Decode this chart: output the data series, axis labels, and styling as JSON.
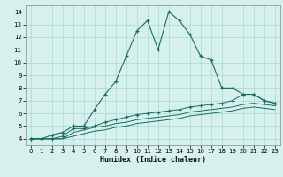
{
  "title": "",
  "xlabel": "Humidex (Indice chaleur)",
  "ylabel": "",
  "bg_color": "#d6f0ee",
  "grid_color": "#a8d8d0",
  "line_color": "#1a6b5e",
  "xlim": [
    -0.5,
    23.5
  ],
  "ylim": [
    3.5,
    14.5
  ],
  "xticks": [
    0,
    1,
    2,
    3,
    4,
    5,
    6,
    7,
    8,
    9,
    10,
    11,
    12,
    13,
    14,
    15,
    16,
    17,
    18,
    19,
    20,
    21,
    22,
    23
  ],
  "yticks": [
    4,
    5,
    6,
    7,
    8,
    9,
    10,
    11,
    12,
    13,
    14
  ],
  "line1_x": [
    0,
    1,
    2,
    3,
    4,
    5,
    6,
    7,
    8,
    9,
    10,
    11,
    12,
    13,
    14,
    15,
    16,
    17,
    18,
    19,
    20,
    21,
    22,
    23
  ],
  "line1_y": [
    4.0,
    4.0,
    4.3,
    4.5,
    5.0,
    5.0,
    6.3,
    7.5,
    8.5,
    10.5,
    12.5,
    13.3,
    11.0,
    14.0,
    13.3,
    12.2,
    10.5,
    10.2,
    8.0,
    8.0,
    7.5,
    7.5,
    7.0,
    6.8
  ],
  "line2_x": [
    0,
    1,
    2,
    3,
    4,
    5,
    6,
    7,
    8,
    9,
    10,
    11,
    12,
    13,
    14,
    15,
    16,
    17,
    18,
    19,
    20,
    21,
    22,
    23
  ],
  "line2_y": [
    4.0,
    4.0,
    4.0,
    4.2,
    4.8,
    4.8,
    5.0,
    5.3,
    5.5,
    5.7,
    5.9,
    6.0,
    6.1,
    6.2,
    6.3,
    6.5,
    6.6,
    6.7,
    6.8,
    7.0,
    7.5,
    7.5,
    7.0,
    6.8
  ],
  "line3_x": [
    0,
    1,
    2,
    3,
    4,
    5,
    6,
    7,
    8,
    9,
    10,
    11,
    12,
    13,
    14,
    15,
    16,
    17,
    18,
    19,
    20,
    21,
    22,
    23
  ],
  "line3_y": [
    4.0,
    4.0,
    4.0,
    4.0,
    4.5,
    4.7,
    4.9,
    5.0,
    5.2,
    5.3,
    5.5,
    5.6,
    5.7,
    5.8,
    5.9,
    6.1,
    6.2,
    6.3,
    6.4,
    6.5,
    6.7,
    6.8,
    6.7,
    6.6
  ],
  "line4_x": [
    0,
    1,
    2,
    3,
    4,
    5,
    6,
    7,
    8,
    9,
    10,
    11,
    12,
    13,
    14,
    15,
    16,
    17,
    18,
    19,
    20,
    21,
    22,
    23
  ],
  "line4_y": [
    4.0,
    4.0,
    4.0,
    4.0,
    4.2,
    4.4,
    4.6,
    4.7,
    4.9,
    5.0,
    5.2,
    5.3,
    5.4,
    5.5,
    5.6,
    5.8,
    5.9,
    6.0,
    6.1,
    6.2,
    6.4,
    6.5,
    6.4,
    6.3
  ]
}
